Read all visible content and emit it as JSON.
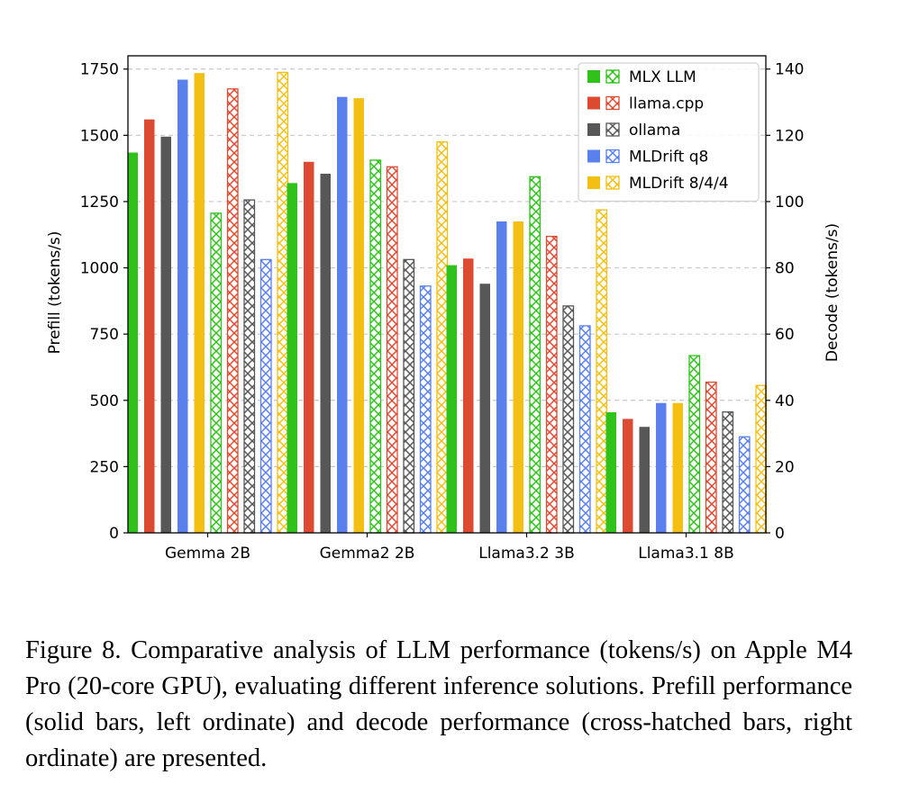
{
  "chart_data": {
    "type": "bar",
    "title": "",
    "categories": [
      "Gemma 2B",
      "Gemma2 2B",
      "Llama3.2 3B",
      "Llama3.1 8B"
    ],
    "ylabel_left": "Prefill (tokens/s)",
    "ylabel_right": "Decode (tokens/s)",
    "ylim_left": [
      0,
      1800
    ],
    "ylim_right": [
      0,
      144
    ],
    "yticks_left": [
      0,
      250,
      500,
      750,
      1000,
      1250,
      1500,
      1750
    ],
    "yticks_right": [
      0,
      20,
      40,
      60,
      80,
      100,
      120,
      140
    ],
    "grid": "horizontal dashed",
    "legend_position": "top-right",
    "series": [
      {
        "name": "MLX LLM",
        "color": "#2ec21a",
        "prefill": [
          1435,
          1320,
          1010,
          455
        ],
        "decode": [
          96.5,
          112.5,
          107.5,
          53.5
        ]
      },
      {
        "name": "llama.cpp",
        "color": "#dd4a32",
        "prefill": [
          1560,
          1400,
          1035,
          430
        ],
        "decode": [
          134,
          110.5,
          89.5,
          45.5
        ]
      },
      {
        "name": "ollama",
        "color": "#575757",
        "prefill": [
          1495,
          1355,
          940,
          400
        ],
        "decode": [
          100.5,
          82.5,
          68.5,
          36.5
        ]
      },
      {
        "name": "MLDrift q8",
        "color": "#5a80ee",
        "prefill": [
          1710,
          1645,
          1175,
          490
        ],
        "decode": [
          82.5,
          74.5,
          62.5,
          29
        ]
      },
      {
        "name": "MLDrift 8/4/4",
        "color": "#f4bf13",
        "prefill": [
          1735,
          1640,
          1175,
          490
        ],
        "decode": [
          139,
          118,
          97.5,
          44.5
        ]
      }
    ]
  },
  "caption": {
    "text": "Figure 8. Comparative analysis of LLM performance (tokens/s) on Apple M4 Pro (20-core GPU), evaluating different inference solutions. Prefill performance (solid bars, left ordinate) and decode performance (cross-hatched bars, right ordinate) are presented."
  }
}
